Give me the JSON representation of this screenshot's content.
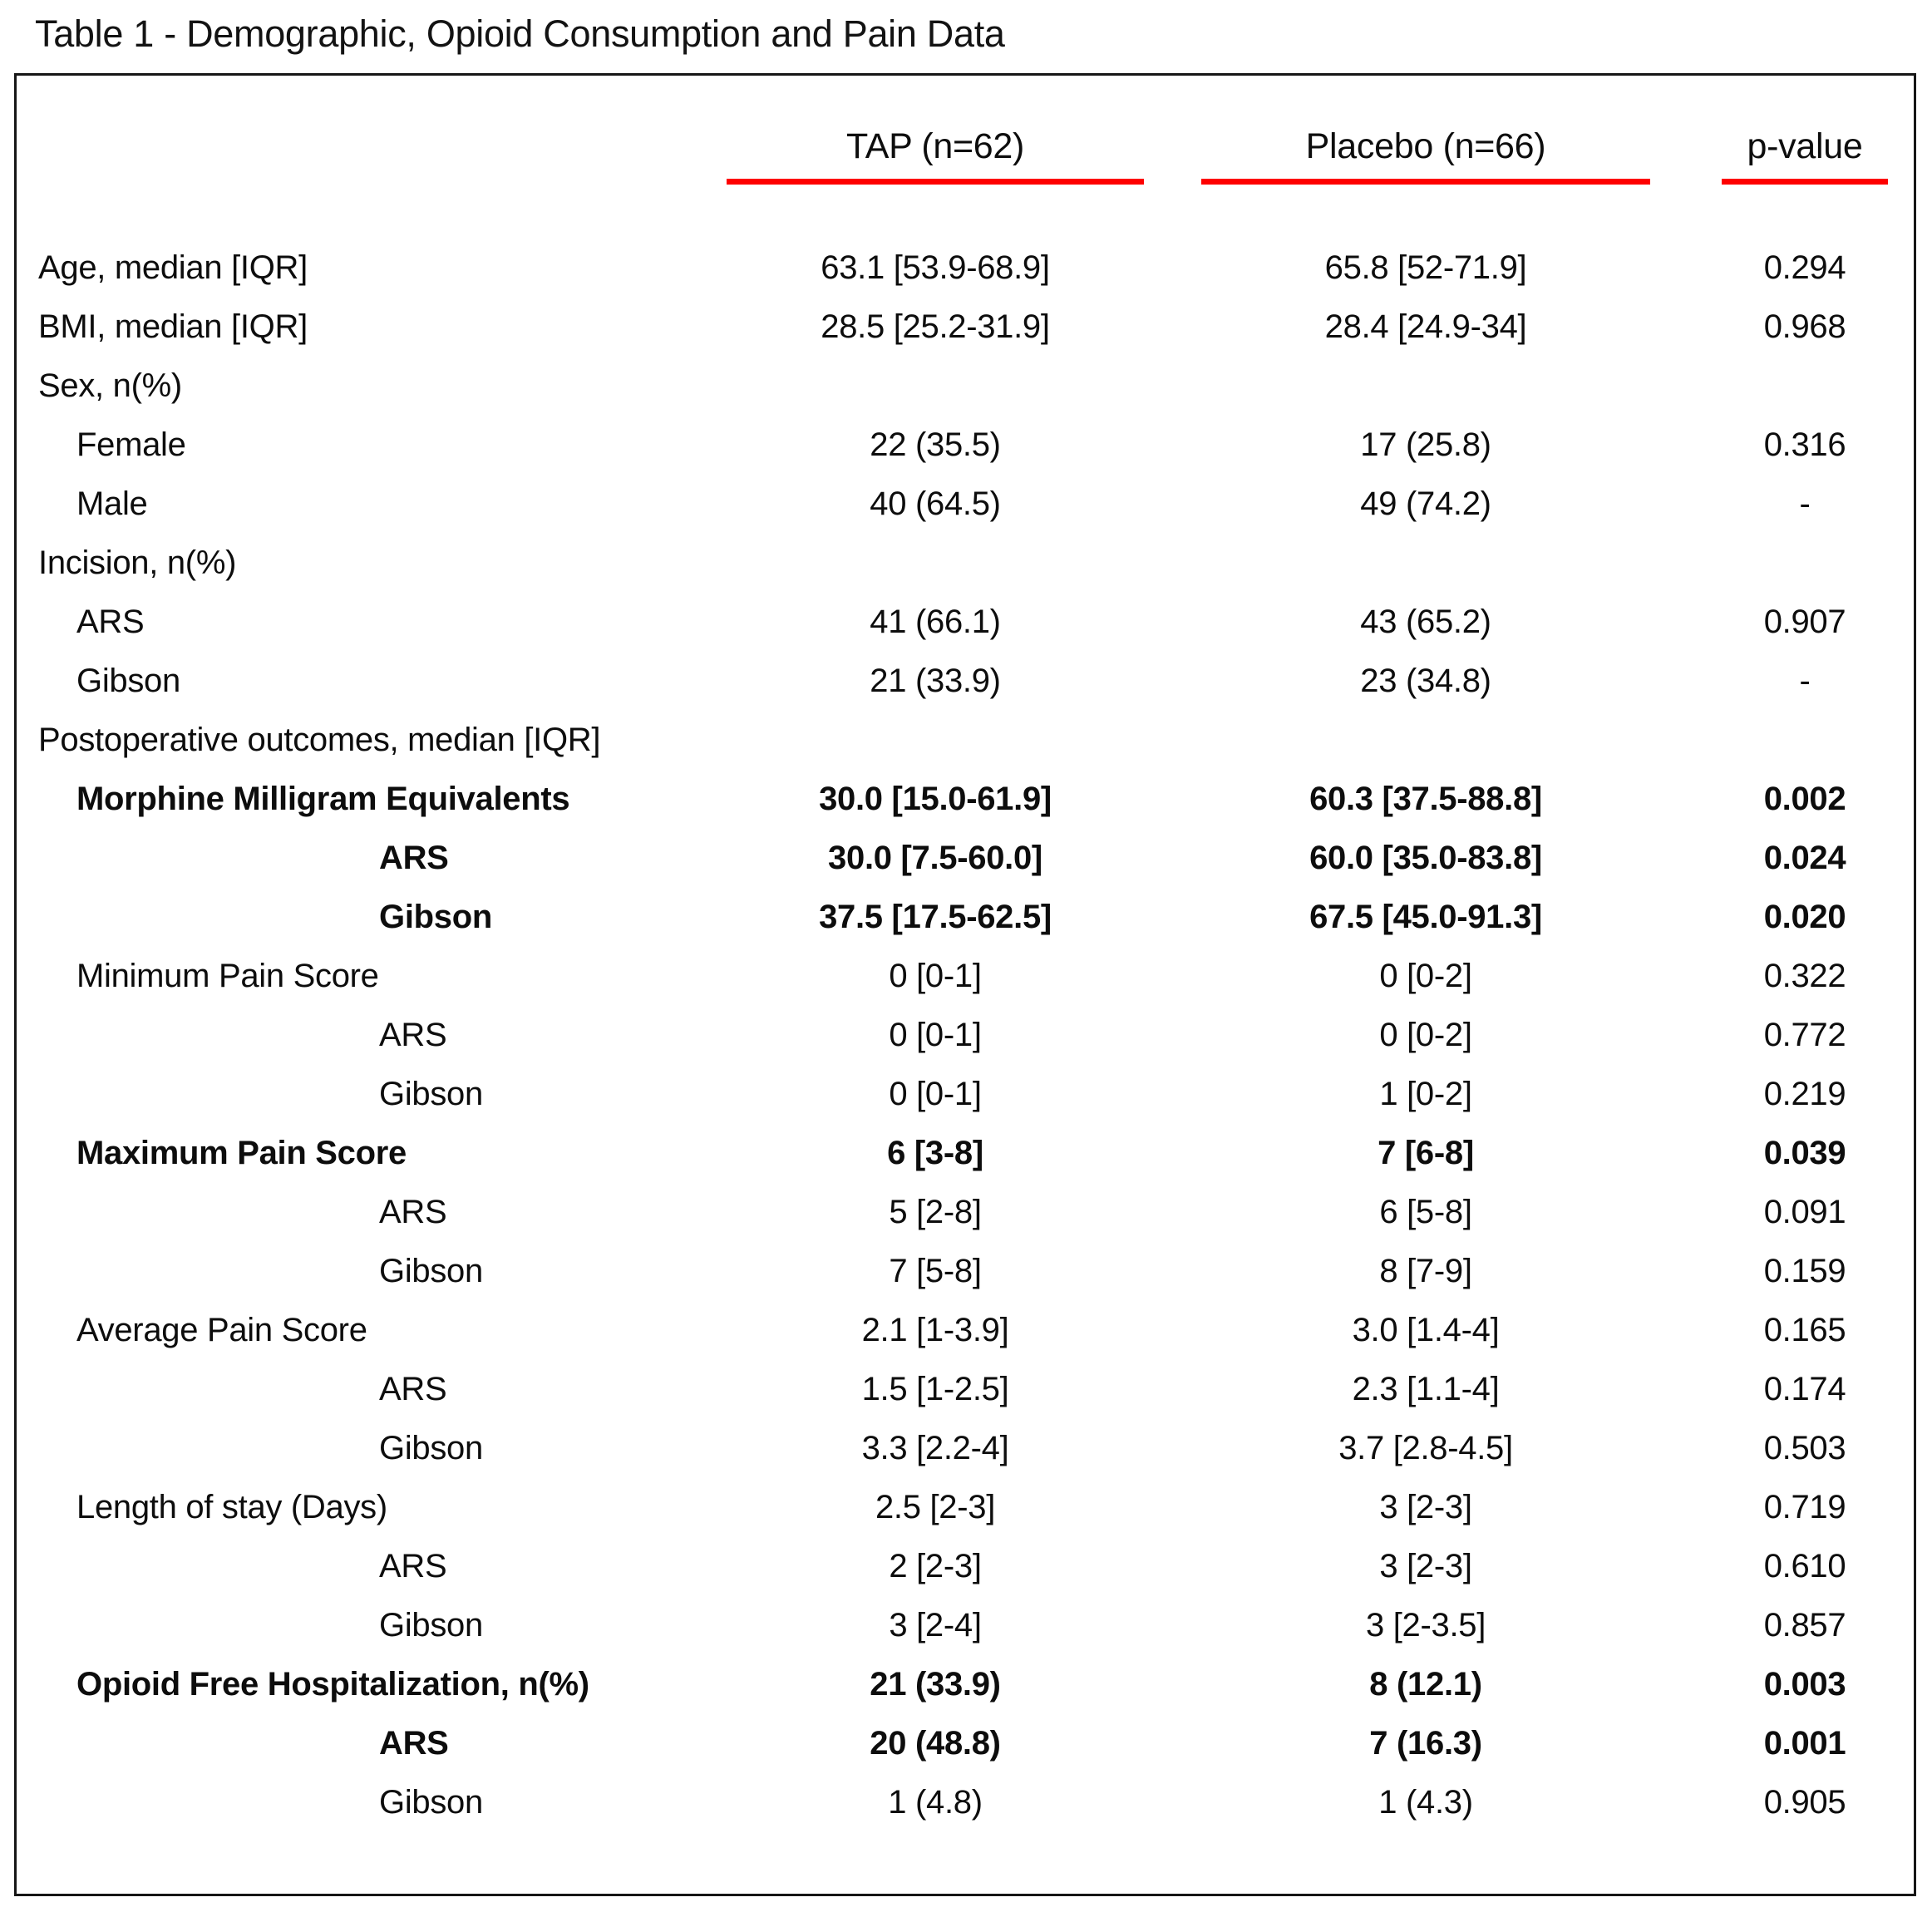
{
  "title": "Table 1 - Demographic, Opioid Consumption and Pain Data",
  "columns": {
    "tap": "TAP (n=62)",
    "placebo": "Placebo (n=66)",
    "pvalue": "p-value"
  },
  "colors": {
    "header_underline_red": "#fe0000",
    "text": "#000000",
    "border": "#161616"
  },
  "rows": [
    {
      "label": "Age, median [IQR]",
      "tap": "63.1 [53.9-68.9]",
      "placebo": "65.8 [52-71.9]",
      "p": "0.294"
    },
    {
      "label": "BMI, median [IQR]",
      "tap": "28.5 [25.2-31.9]",
      "placebo": "28.4 [24.9-34]",
      "p": "0.968"
    },
    {
      "label": "Sex, n(%)",
      "tap": "",
      "placebo": "",
      "p": ""
    },
    {
      "label": "Female",
      "tap": "22 (35.5)",
      "placebo": "17 (25.8)",
      "p": "0.316"
    },
    {
      "label": "Male",
      "tap": "40 (64.5)",
      "placebo": "49 (74.2)",
      "p": "-"
    },
    {
      "label": "Incision, n(%)",
      "tap": "",
      "placebo": "",
      "p": ""
    },
    {
      "label": "ARS",
      "tap": "41 (66.1)",
      "placebo": "43 (65.2)",
      "p": "0.907"
    },
    {
      "label": "Gibson",
      "tap": "21 (33.9)",
      "placebo": "23 (34.8)",
      "p": "-"
    },
    {
      "label": "Postoperative outcomes, median [IQR]",
      "tap": "",
      "placebo": "",
      "p": ""
    },
    {
      "label": "Morphine Milligram Equivalents",
      "tap": "30.0 [15.0-61.9]",
      "placebo": "60.3 [37.5-88.8]",
      "p": "0.002"
    },
    {
      "label": "ARS",
      "tap": "30.0 [7.5-60.0]",
      "placebo": "60.0 [35.0-83.8]",
      "p": "0.024"
    },
    {
      "label": "Gibson",
      "tap": "37.5 [17.5-62.5]",
      "placebo": "67.5 [45.0-91.3]",
      "p": "0.020"
    },
    {
      "label": "Minimum Pain Score",
      "tap": "0 [0-1]",
      "placebo": "0 [0-2]",
      "p": "0.322"
    },
    {
      "label": "ARS",
      "tap": "0 [0-1]",
      "placebo": "0 [0-2]",
      "p": "0.772"
    },
    {
      "label": "Gibson",
      "tap": "0 [0-1]",
      "placebo": "1 [0-2]",
      "p": "0.219"
    },
    {
      "label": "Maximum Pain Score",
      "tap": "6 [3-8]",
      "placebo": "7 [6-8]",
      "p": "0.039"
    },
    {
      "label": "ARS",
      "tap": "5 [2-8]",
      "placebo": "6 [5-8]",
      "p": "0.091"
    },
    {
      "label": "Gibson",
      "tap": "7 [5-8]",
      "placebo": "8 [7-9]",
      "p": "0.159"
    },
    {
      "label": "Average Pain Score",
      "tap": "2.1 [1-3.9]",
      "placebo": "3.0 [1.4-4]",
      "p": "0.165"
    },
    {
      "label": "ARS",
      "tap": "1.5 [1-2.5]",
      "placebo": "2.3 [1.1-4]",
      "p": "0.174"
    },
    {
      "label": "Gibson",
      "tap": "3.3 [2.2-4]",
      "placebo": "3.7 [2.8-4.5]",
      "p": "0.503"
    },
    {
      "label": "Length of stay (Days)",
      "tap": "2.5 [2-3]",
      "placebo": "3 [2-3]",
      "p": "0.719"
    },
    {
      "label": "ARS",
      "tap": "2 [2-3]",
      "placebo": "3 [2-3]",
      "p": "0.610"
    },
    {
      "label": "Gibson",
      "tap": "3 [2-4]",
      "placebo": "3 [2-3.5]",
      "p": "0.857"
    },
    {
      "label": "Opioid Free Hospitalization, n(%)",
      "tap": "21 (33.9)",
      "placebo": "8 (12.1)",
      "p": "0.003"
    },
    {
      "label": "ARS",
      "tap": "20 (48.8)",
      "placebo": "7 (16.3)",
      "p": "0.001"
    },
    {
      "label": "Gibson",
      "tap": "1 (4.8)",
      "placebo": "1 (4.3)",
      "p": "0.905"
    }
  ]
}
